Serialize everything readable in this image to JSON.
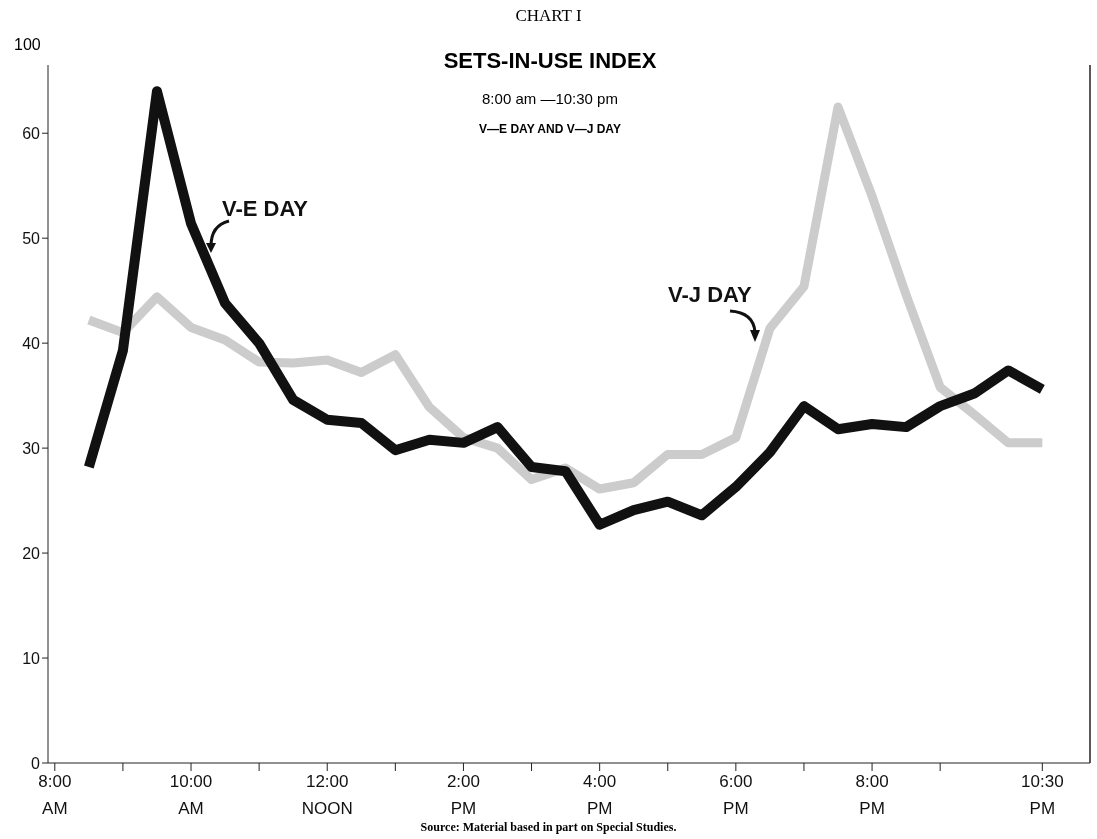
{
  "chart_data": {
    "type": "line",
    "title": "SETS-IN-USE INDEX",
    "subtitle": "8:00 am —10:30 pm",
    "annotations": [
      "CHART I",
      "V—E DAY AND V—J DAY",
      "100",
      "Source: Material based in part on Special Studies."
    ],
    "x": [
      8.5,
      9,
      9.5,
      10,
      10.5,
      11,
      11.5,
      12,
      12.5,
      13,
      13.5,
      14,
      14.5,
      15,
      15.5,
      16,
      16.5,
      17,
      17.5,
      18,
      18.5,
      19,
      19.5,
      20,
      20.5,
      21,
      21.5,
      22,
      22.5
    ],
    "series": [
      {
        "name": "V-J DAY",
        "color": "#cccccc",
        "values": [
          42.2,
          41,
          44.4,
          41.5,
          40.3,
          38.2,
          38.1,
          38.4,
          37.2,
          38.9,
          33.9,
          31,
          30,
          27,
          28.1,
          26.1,
          26.7,
          29.4,
          29.4,
          31,
          41.4,
          45.4,
          62.5,
          54,
          44.6,
          35.8,
          33.2,
          30.5,
          30.5
        ]
      },
      {
        "name": "V-E DAY",
        "color": "#111111",
        "values": [
          28.2,
          39.3,
          64,
          51.4,
          43.8,
          40,
          34.6,
          32.7,
          32.4,
          29.8,
          30.8,
          30.5,
          32,
          28.2,
          27.8,
          22.7,
          24.1,
          24.9,
          23.6,
          26.3,
          29.6,
          34,
          31.8,
          32.3,
          32,
          34,
          35.2,
          37.4,
          35.6
        ]
      }
    ],
    "xlim": [
      7.9,
      23.2
    ],
    "xticks": [
      {
        "value": 8,
        "label": "8:00\nAM"
      },
      {
        "value": 9,
        "label": null
      },
      {
        "value": 10,
        "label": "10:00\nAM"
      },
      {
        "value": 11,
        "label": null
      },
      {
        "value": 12,
        "label": "12:00\nNOON"
      },
      {
        "value": 13,
        "label": null
      },
      {
        "value": 14,
        "label": "2:00\nPM"
      },
      {
        "value": 15,
        "label": null
      },
      {
        "value": 16,
        "label": "4:00\nPM"
      },
      {
        "value": 17,
        "label": null
      },
      {
        "value": 18,
        "label": "6:00\nPM"
      },
      {
        "value": 19,
        "label": null
      },
      {
        "value": 20,
        "label": "8:00\nPM"
      },
      {
        "value": 21,
        "label": null
      },
      {
        "value": 22.5,
        "label": "10:30\nPM"
      }
    ],
    "ylim": [
      0,
      66.5
    ],
    "yticks": [
      0,
      10,
      20,
      30,
      40,
      50,
      60
    ],
    "grid": false,
    "legend": false,
    "marker": "none",
    "line_style": "solid"
  }
}
